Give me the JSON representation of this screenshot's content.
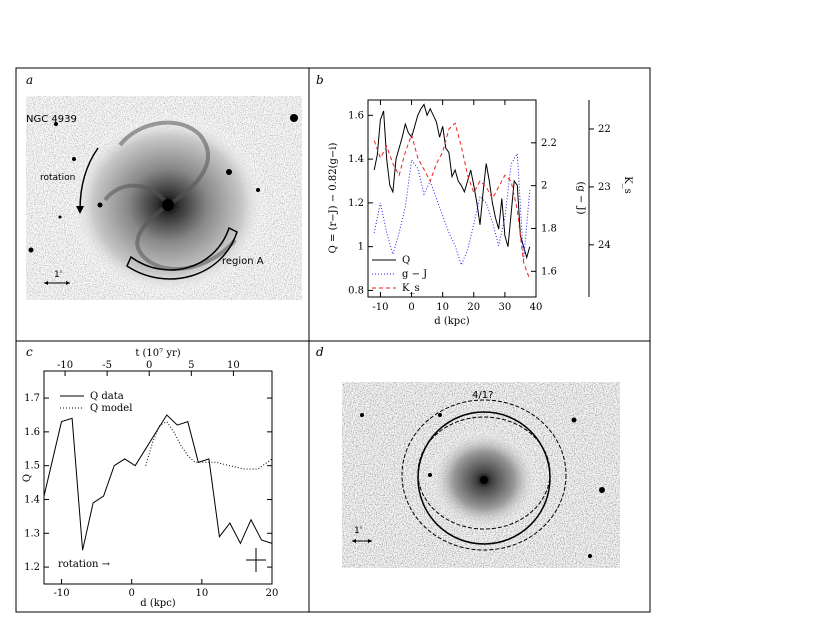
{
  "panels": {
    "a": {
      "label": "a",
      "galaxy_label": "NGC 4939",
      "rotation_label": "rotation",
      "region_label": "region A",
      "scale_label": "1'"
    },
    "b": {
      "label": "b",
      "ylabel_left": "Q = (r−J) − 0.82(g−i)",
      "ylabel_right1": "(g − J)",
      "ylabel_right2": "K_s",
      "xlabel": "d (kpc)",
      "legend": [
        "Q",
        "g − J",
        "K_s"
      ]
    },
    "c": {
      "label": "c",
      "xlabel": "d (kpc)",
      "top_label": "t (10⁷ yr)",
      "ylabel": "Q",
      "legend": [
        "Q data",
        "Q model"
      ],
      "rotation_label": "rotation →"
    },
    "d": {
      "label": "d",
      "resonance_label": "4/1?",
      "scale_label": "1'"
    }
  },
  "colors": {
    "Q": "#000000",
    "gJ": "#2222ee",
    "Ks": "#ee2222"
  },
  "chart_data": [
    {
      "panel": "b",
      "type": "line",
      "xlabel": "d (kpc)",
      "xlim": [
        -14,
        40
      ],
      "x_ticks": [
        -10,
        0,
        10,
        20,
        30,
        40
      ],
      "axes": {
        "left": {
          "label": "Q = (r−J) − 0.82(g−i)",
          "lim": [
            0.77,
            1.67
          ],
          "ticks": [
            0.8,
            1,
            1.2,
            1.4,
            1.6
          ]
        },
        "right1": {
          "label": "(g − J)",
          "lim": [
            1.48,
            2.4
          ],
          "ticks": [
            1.6,
            1.8,
            2,
            2.2
          ]
        },
        "right2": {
          "label": "K_s",
          "lim": [
            24.9,
            21.5
          ],
          "ticks": [
            22,
            23,
            24
          ]
        }
      },
      "series": [
        {
          "name": "Q",
          "axis": "left",
          "style": "solid",
          "x": [
            -12,
            -11,
            -10,
            -9,
            -8,
            -7,
            -6,
            -5,
            -4,
            -3,
            -2,
            -1,
            0,
            1,
            2,
            3,
            4,
            5,
            6,
            7,
            8,
            9,
            10,
            11,
            12,
            13,
            14,
            15,
            16,
            17,
            18,
            19,
            20,
            21,
            22,
            23,
            24,
            25,
            26,
            27,
            28,
            29,
            30,
            31,
            32,
            33,
            34,
            35,
            36,
            37,
            38
          ],
          "y": [
            1.35,
            1.42,
            1.58,
            1.62,
            1.4,
            1.28,
            1.25,
            1.4,
            1.45,
            1.5,
            1.56,
            1.52,
            1.5,
            1.55,
            1.6,
            1.63,
            1.65,
            1.6,
            1.63,
            1.6,
            1.57,
            1.5,
            1.55,
            1.45,
            1.43,
            1.32,
            1.35,
            1.3,
            1.28,
            1.25,
            1.3,
            1.35,
            1.28,
            1.2,
            1.1,
            1.25,
            1.38,
            1.3,
            1.2,
            1.13,
            1.08,
            1.22,
            1.05,
            1.0,
            1.15,
            1.3,
            1.28,
            1.05,
            1.0,
            0.95,
            1.0
          ]
        },
        {
          "name": "g − J",
          "axis": "right1",
          "style": "dotted",
          "x": [
            -12,
            -10,
            -8,
            -6,
            -4,
            -2,
            0,
            2,
            4,
            6,
            8,
            10,
            12,
            14,
            16,
            18,
            20,
            22,
            24,
            26,
            28,
            30,
            32,
            34,
            36,
            38
          ],
          "y": [
            1.78,
            1.92,
            1.78,
            1.68,
            1.78,
            1.9,
            2.12,
            2.08,
            1.96,
            2.02,
            1.94,
            1.86,
            1.78,
            1.72,
            1.63,
            1.7,
            1.82,
            1.95,
            1.92,
            1.83,
            1.72,
            1.85,
            2.1,
            2.15,
            1.65,
            1.98
          ]
        },
        {
          "name": "K_s",
          "axis": "right2",
          "style": "dashed",
          "x": [
            -12,
            -10,
            -8,
            -6,
            -4,
            -2,
            0,
            2,
            4,
            6,
            8,
            10,
            12,
            14,
            16,
            18,
            20,
            22,
            24,
            26,
            28,
            30,
            32,
            34,
            36,
            38
          ],
          "y": [
            22.2,
            22.5,
            22.3,
            22.6,
            22.8,
            22.4,
            22.1,
            22.5,
            22.7,
            22.9,
            22.6,
            22.4,
            22.0,
            21.9,
            22.3,
            22.8,
            23.1,
            22.9,
            23.0,
            23.2,
            23.0,
            22.8,
            22.9,
            23.4,
            24.3,
            24.6
          ]
        }
      ]
    },
    {
      "panel": "c",
      "type": "line",
      "xlabel": "d (kpc)",
      "ylabel": "Q",
      "xlim": [
        -12.5,
        20
      ],
      "ylim": [
        1.15,
        1.78
      ],
      "x_ticks": [
        -10,
        0,
        10,
        20
      ],
      "y_ticks": [
        1.2,
        1.3,
        1.4,
        1.5,
        1.6,
        1.7
      ],
      "top_axis": {
        "label": "t (10⁷ yr)",
        "ticks": [
          -10,
          -5,
          0,
          5,
          10
        ],
        "tick_positions_d": [
          -9.5,
          -3.5,
          2.5,
          8.5,
          14.5
        ]
      },
      "series": [
        {
          "name": "Q data",
          "style": "solid",
          "x": [
            -12.5,
            -10,
            -8.5,
            -7,
            -5.5,
            -4,
            -2.5,
            -1,
            0.5,
            2,
            3.5,
            5,
            6.5,
            8,
            9.5,
            11,
            12.5,
            14,
            15.5,
            17,
            18.5,
            20
          ],
          "y": [
            1.41,
            1.63,
            1.64,
            1.25,
            1.39,
            1.41,
            1.5,
            1.52,
            1.5,
            1.55,
            1.6,
            1.65,
            1.62,
            1.63,
            1.51,
            1.52,
            1.29,
            1.33,
            1.27,
            1.34,
            1.28,
            1.27
          ]
        },
        {
          "name": "Q model",
          "style": "dotted",
          "x": [
            2,
            3,
            4,
            5,
            6,
            7,
            8,
            9,
            10,
            12,
            14,
            16,
            18,
            20
          ],
          "y": [
            1.5,
            1.57,
            1.62,
            1.63,
            1.6,
            1.56,
            1.53,
            1.51,
            1.51,
            1.51,
            1.5,
            1.49,
            1.49,
            1.52
          ]
        }
      ]
    }
  ]
}
